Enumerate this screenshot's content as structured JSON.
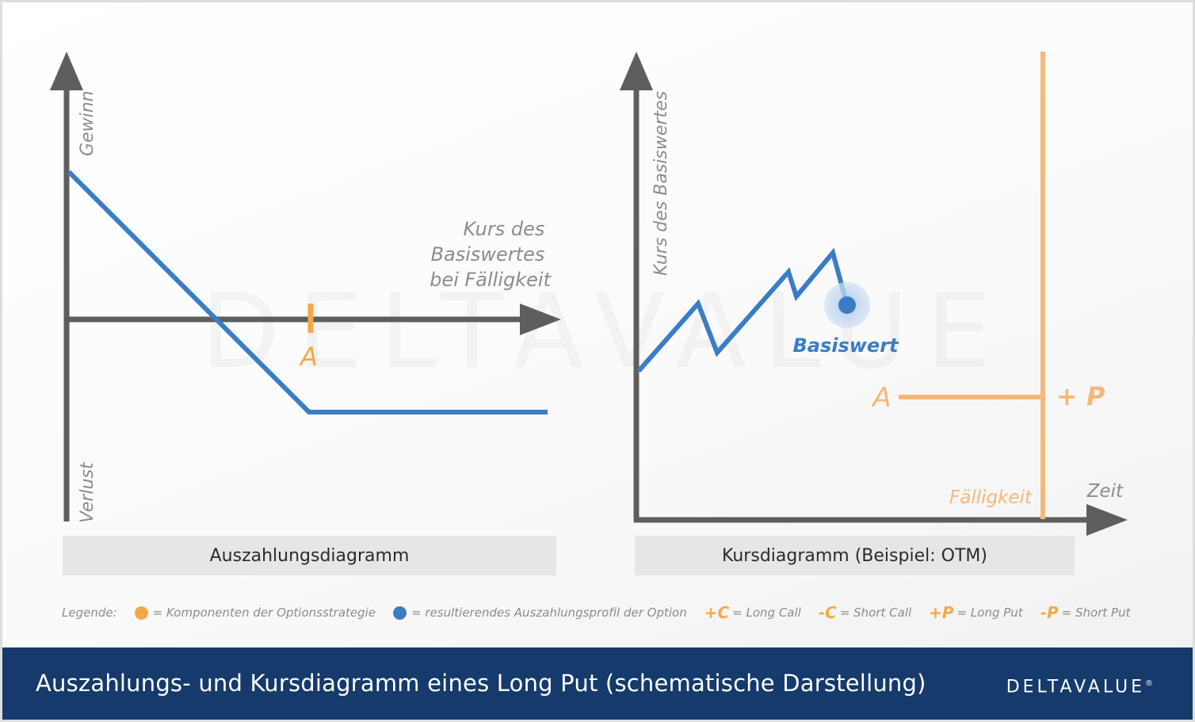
{
  "left_diagram": {
    "caption": "Auszahlungsdiagramm",
    "y_axis_top_label": "Gewinn",
    "y_axis_bottom_label": "Verlust",
    "x_axis_label_lines": [
      "Kurs des",
      "Basiswertes",
      "bei Fälligkeit"
    ],
    "strike_marker_label": "A"
  },
  "right_diagram": {
    "caption": "Kursdiagramm (Beispiel: OTM)",
    "y_axis_label": "Kurs des Basiswertes",
    "x_axis_label": "Zeit",
    "underlying_label": "Basiswert",
    "strike_label": "A",
    "option_label": "+ P",
    "expiry_label": "Fälligkeit"
  },
  "watermark": "DELTAVALUE",
  "legend": {
    "prefix": "Legende:",
    "items": [
      {
        "color": "#f5a84a",
        "text": "= Komponenten der Optionsstrategie"
      },
      {
        "color": "#3a7dc6",
        "text": "= resultierendes Auszahlungsprofil der Option"
      }
    ],
    "symbols": [
      {
        "symbol": "+C",
        "text": "= Long Call"
      },
      {
        "symbol": "-C",
        "text": "= Short Call"
      },
      {
        "symbol": "+P",
        "text": "= Long Put"
      },
      {
        "symbol": "-P",
        "text": "= Short Put"
      }
    ]
  },
  "footer": {
    "title": "Auszahlungs- und Kursdiagramm eines Long Put (schematische Darstellung)",
    "brand": "DELTAVALUE",
    "brand_mark": "®"
  },
  "colors": {
    "axis": "#5e5e5e",
    "payoff": "#3a7dc6",
    "component": "#f5a84a",
    "footer_bg": "#153a6b"
  }
}
